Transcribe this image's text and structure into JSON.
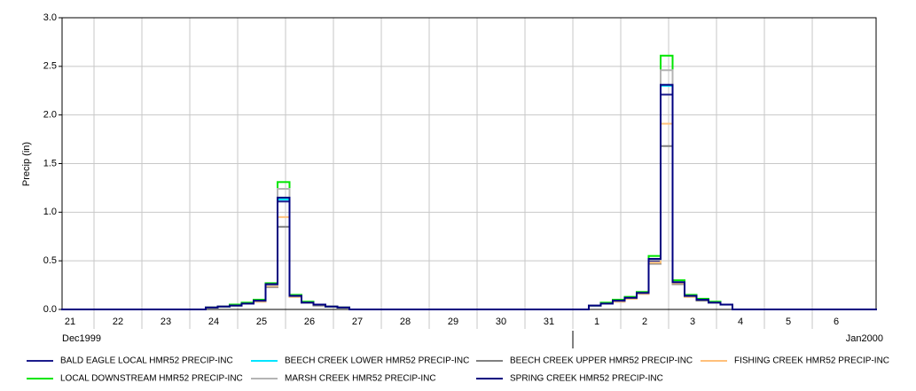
{
  "chart_data": {
    "type": "line",
    "step": true,
    "y_label": "Precip (in)",
    "ylim": [
      0,
      3
    ],
    "yticks": [
      {
        "value": 0,
        "label": "0.0"
      },
      {
        "value": 0.5,
        "label": "0.5"
      },
      {
        "value": 1,
        "label": "1.0"
      },
      {
        "value": 1.5,
        "label": "1.5"
      },
      {
        "value": 2,
        "label": "2.0"
      },
      {
        "value": 2.5,
        "label": "2.5"
      },
      {
        "value": 3,
        "label": "3.0"
      }
    ],
    "xlim": [
      0.333,
      17.333
    ],
    "xticks": [
      {
        "value": 0,
        "label": "21"
      },
      {
        "value": 1,
        "label": "22"
      },
      {
        "value": 2,
        "label": "23"
      },
      {
        "value": 3,
        "label": "24"
      },
      {
        "value": 4,
        "label": "25"
      },
      {
        "value": 5,
        "label": "26"
      },
      {
        "value": 6,
        "label": "27"
      },
      {
        "value": 7,
        "label": "28"
      },
      {
        "value": 8,
        "label": "29"
      },
      {
        "value": 9,
        "label": "30"
      },
      {
        "value": 10,
        "label": "31"
      },
      {
        "value": 11,
        "label": "1"
      },
      {
        "value": 12,
        "label": "2"
      },
      {
        "value": 13,
        "label": "3"
      },
      {
        "value": 14,
        "label": "4"
      },
      {
        "value": 15,
        "label": "5"
      },
      {
        "value": 16,
        "label": "6"
      }
    ],
    "months": [
      {
        "value": 0,
        "label": "Dec1999"
      },
      {
        "value": 11,
        "label": "Jan2000"
      }
    ],
    "grid": true,
    "x": [
      0.333,
      3.333,
      3.583,
      3.833,
      4.083,
      4.333,
      4.583,
      4.833,
      5.083,
      5.333,
      5.583,
      5.833,
      6.083,
      6.333,
      11.333,
      11.583,
      11.833,
      12.083,
      12.333,
      12.583,
      12.833,
      13.083,
      13.333,
      13.583,
      13.833,
      14.083,
      14.333,
      17.333
    ],
    "series": [
      {
        "name": "BALD EAGLE LOCAL HMR52 PRECIP-INC",
        "color": "#1c1c8c",
        "values": [
          0,
          0.02,
          0.03,
          0.04,
          0.06,
          0.09,
          0.25,
          1.11,
          0.14,
          0.07,
          0.05,
          0.03,
          0.02,
          0,
          0.04,
          0.06,
          0.09,
          0.11,
          0.17,
          0.5,
          2.21,
          0.27,
          0.14,
          0.1,
          0.07,
          0.05,
          0,
          0
        ]
      },
      {
        "name": "BEECH CREEK LOWER HMR52 PRECIP-INC",
        "color": "#00e5ff",
        "values": [
          0,
          0.02,
          0.03,
          0.04,
          0.06,
          0.09,
          0.26,
          1.13,
          0.14,
          0.07,
          0.05,
          0.03,
          0.02,
          0,
          0.04,
          0.06,
          0.09,
          0.12,
          0.17,
          0.52,
          2.3,
          0.28,
          0.14,
          0.1,
          0.07,
          0.05,
          0,
          0
        ]
      },
      {
        "name": "BEECH CREEK UPPER HMR52 PRECIP-INC",
        "color": "#808080",
        "values": [
          0,
          0.02,
          0.03,
          0.04,
          0.06,
          0.08,
          0.23,
          0.85,
          0.13,
          0.07,
          0.04,
          0.03,
          0.02,
          0,
          0.04,
          0.06,
          0.08,
          0.11,
          0.16,
          0.47,
          1.68,
          0.26,
          0.13,
          0.09,
          0.07,
          0.05,
          0,
          0
        ]
      },
      {
        "name": "FISHING CREEK HMR52 PRECIP-INC",
        "color": "#ffc07a",
        "values": [
          0,
          0.02,
          0.03,
          0.04,
          0.06,
          0.08,
          0.24,
          0.95,
          0.13,
          0.07,
          0.05,
          0.03,
          0.02,
          0,
          0.04,
          0.06,
          0.08,
          0.11,
          0.16,
          0.48,
          1.91,
          0.27,
          0.13,
          0.1,
          0.07,
          0.05,
          0,
          0
        ]
      },
      {
        "name": "LOCAL DOWNSTREAM HMR52 PRECIP-INC",
        "color": "#00e600",
        "values": [
          0,
          0.02,
          0.03,
          0.05,
          0.07,
          0.1,
          0.27,
          1.31,
          0.15,
          0.08,
          0.05,
          0.03,
          0.02,
          0,
          0.04,
          0.07,
          0.1,
          0.13,
          0.18,
          0.55,
          2.61,
          0.3,
          0.15,
          0.11,
          0.08,
          0.05,
          0,
          0
        ]
      },
      {
        "name": "MARSH CREEK HMR52 PRECIP-INC",
        "color": "#b4b4b4",
        "values": [
          0,
          0.02,
          0.03,
          0.04,
          0.06,
          0.09,
          0.25,
          1.24,
          0.14,
          0.07,
          0.05,
          0.03,
          0.02,
          0,
          0.04,
          0.06,
          0.09,
          0.12,
          0.17,
          0.51,
          2.46,
          0.28,
          0.14,
          0.1,
          0.07,
          0.05,
          0,
          0
        ]
      },
      {
        "name": "SPRING CREEK HMR52 PRECIP-INC",
        "color": "#000080",
        "values": [
          0,
          0.02,
          0.03,
          0.04,
          0.06,
          0.09,
          0.26,
          1.15,
          0.14,
          0.07,
          0.05,
          0.03,
          0.02,
          0,
          0.04,
          0.06,
          0.09,
          0.12,
          0.17,
          0.52,
          2.31,
          0.28,
          0.14,
          0.1,
          0.07,
          0.05,
          0,
          0
        ]
      }
    ]
  }
}
